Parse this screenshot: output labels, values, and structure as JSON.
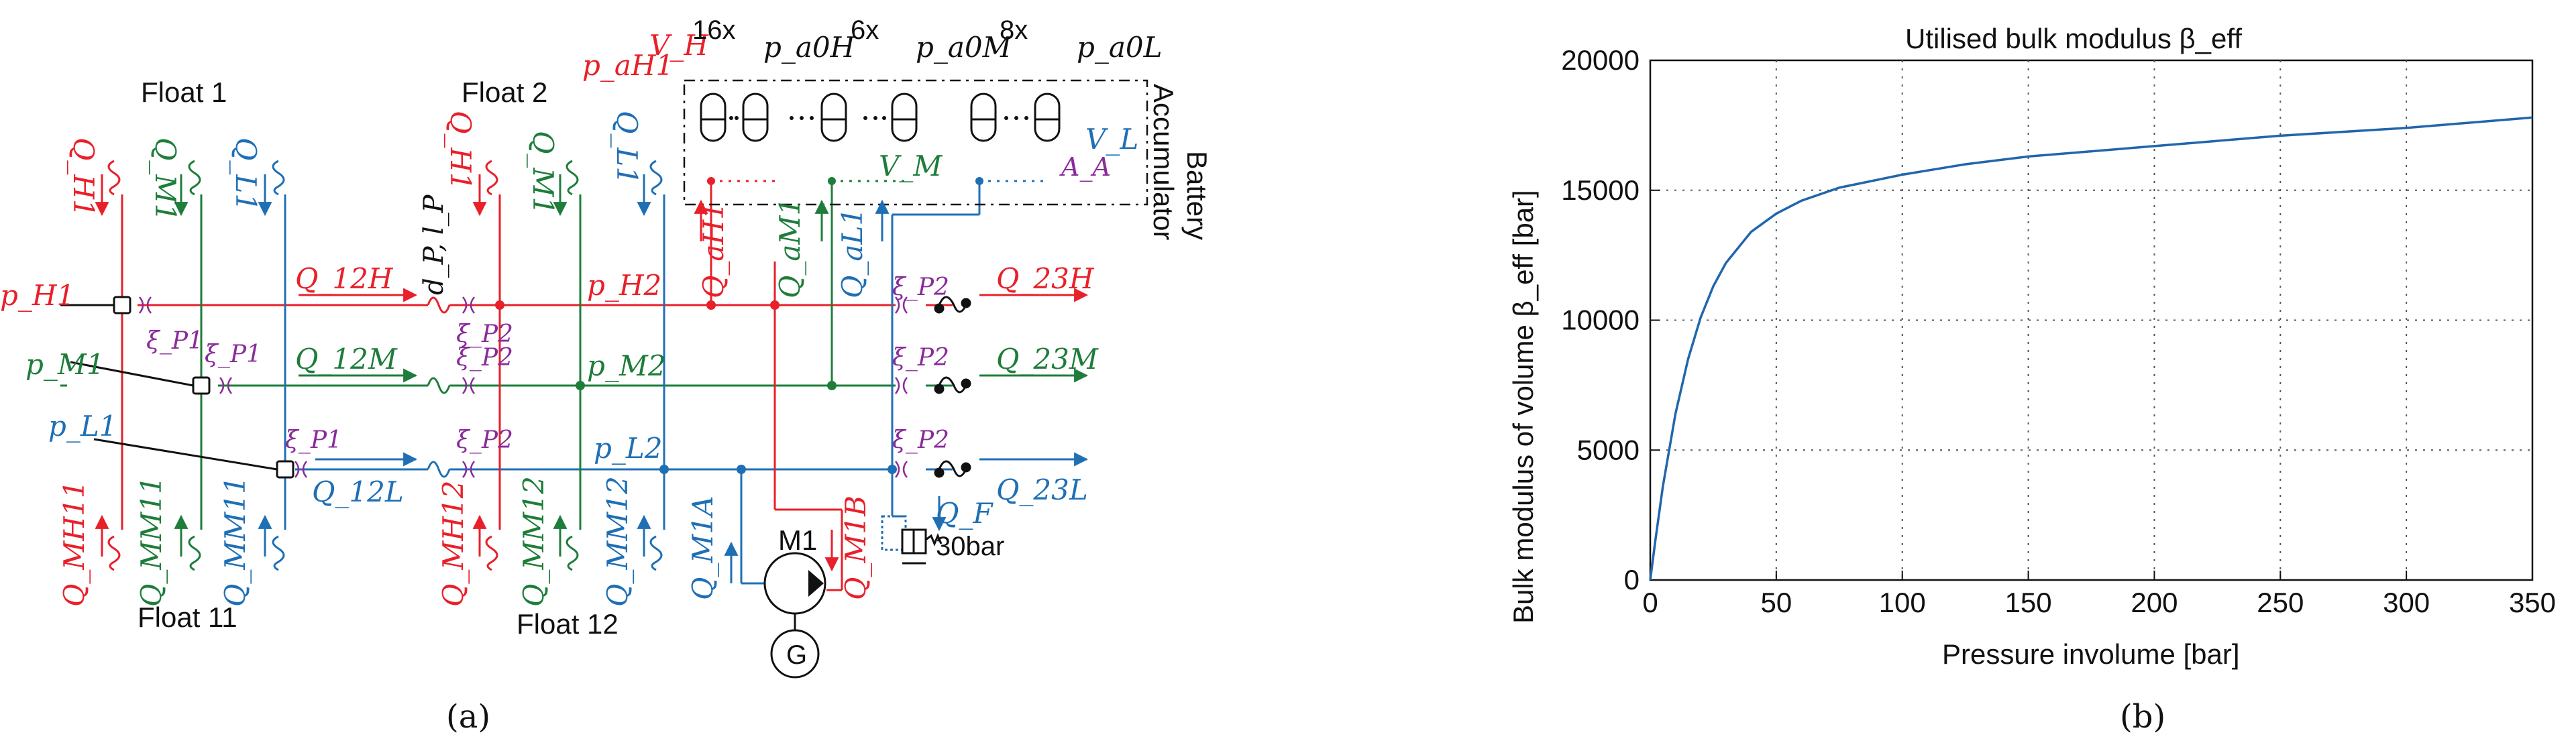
{
  "colors": {
    "high": "#e8202a",
    "mid": "#1e7d3a",
    "low": "#1f6fb5",
    "valve": "#8a2b9a",
    "black": "#111111",
    "curve": "#2166ac",
    "grid": "#555555"
  },
  "panel_a": {
    "caption": "(a)",
    "float_labels": [
      "Float 1",
      "Float 2",
      "Float 11",
      "Float 12"
    ],
    "flow_labels": {
      "q_h1": "Q_H1",
      "q_m1": "Q_M1",
      "q_l1": "Q_L1",
      "q_h2": "Q_H1",
      "q_m2": "Q_M1",
      "q_l2": "Q_L1",
      "q_12h": "Q_12H",
      "q_12m": "Q_12M",
      "q_12l": "Q_12L",
      "q_23h": "Q_23H",
      "q_23m": "Q_23M",
      "q_23l": "Q_23L",
      "q_mh11": "Q_MH11",
      "q_mm11": "Q_MM11",
      "q_ml11": "Q_MM11",
      "q_mh12": "Q_MH12",
      "q_mm12": "Q_MM12",
      "q_ml12": "Q_MM12",
      "q_ah1": "Q_aH1",
      "q_am1": "Q_aM1",
      "q_al1": "Q_aL1",
      "q_m1a": "Q_M1A",
      "q_m1b": "Q_M1B",
      "q_f": "Q_F"
    },
    "pressure_labels": {
      "p_h1": "p_H1",
      "p_m1": "p_M1",
      "p_l1": "p_L1",
      "p_h2": "p_H2",
      "p_m2": "p_M2",
      "p_l2": "p_L2",
      "p_ah1": "p_aH1",
      "p_a0h": "p_a0H",
      "p_a0m": "p_a0M",
      "p_a0l": "p_a0L"
    },
    "valve_labels": {
      "xi_p1": "ξ_P1",
      "xi_p2": "ξ_P2"
    },
    "volume_labels": {
      "v_h": "V_H",
      "v_m": "V_M",
      "v_l": "V_L",
      "a_a": "A_A"
    },
    "counts": [
      "16x",
      "6x",
      "8x"
    ],
    "pipe_label": "d_P, l_P",
    "accumulator_label": [
      "Accumulator",
      "Battery"
    ],
    "motor_label": "M1",
    "generator_label": "G",
    "relief_label": "30bar"
  },
  "panel_b": {
    "caption": "(b)",
    "chart_data": {
      "type": "line",
      "title": "Utilised bulk modulus β_eff",
      "xlabel": "Pressure involume [bar]",
      "ylabel": "Bulk modulus of volume β_eff [bar]",
      "xlim": [
        0,
        350
      ],
      "ylim": [
        0,
        20000
      ],
      "xticks": [
        0,
        50,
        100,
        150,
        200,
        250,
        300,
        350
      ],
      "yticks": [
        0,
        5000,
        10000,
        15000,
        20000
      ],
      "grid": true,
      "series": [
        {
          "x": [
            0,
            2,
            5,
            10,
            15,
            20,
            25,
            30,
            40,
            50,
            60,
            75,
            100,
            125,
            150,
            200,
            250,
            300,
            350
          ],
          "y": [
            0,
            1500,
            3600,
            6400,
            8500,
            10100,
            11300,
            12200,
            13400,
            14100,
            14600,
            15100,
            15600,
            16000,
            16300,
            16700,
            17100,
            17400,
            17800
          ]
        }
      ]
    }
  }
}
